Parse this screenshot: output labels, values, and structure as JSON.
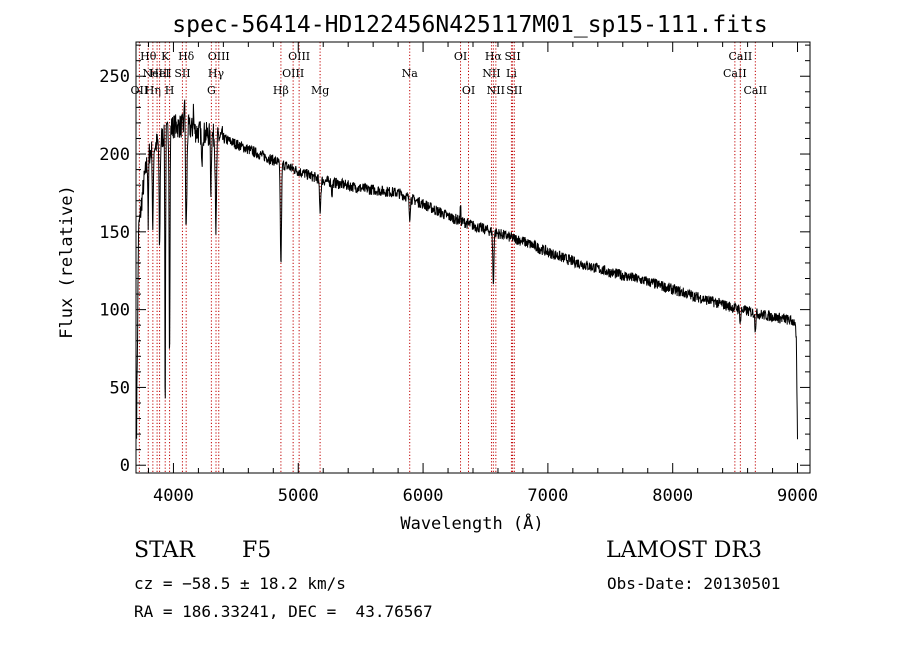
{
  "chart_data": {
    "type": "line",
    "title": "spec-56414-HD122456N425117M01_sp15-111.fits",
    "xlabel": "Wavelength (Å)",
    "ylabel": "Flux (relative)",
    "xlim": [
      3700,
      9100
    ],
    "ylim": [
      -5,
      272
    ],
    "xticks": [
      4000,
      5000,
      6000,
      7000,
      8000,
      9000
    ],
    "xtick_labels": [
      "4000",
      "5000",
      "6000",
      "7000",
      "8000",
      "9000"
    ],
    "yticks": [
      0,
      50,
      100,
      150,
      200,
      250
    ],
    "ytick_labels": [
      "0",
      "50",
      "100",
      "150",
      "200",
      "250"
    ],
    "line_color": "#000000",
    "marker_color": "#c00000",
    "continuum": [
      {
        "x": 3705,
        "y": 25
      },
      {
        "x": 3720,
        "y": 150
      },
      {
        "x": 3760,
        "y": 180
      },
      {
        "x": 3800,
        "y": 200
      },
      {
        "x": 3850,
        "y": 205
      },
      {
        "x": 3900,
        "y": 210
      },
      {
        "x": 4000,
        "y": 218
      },
      {
        "x": 4100,
        "y": 218
      },
      {
        "x": 4200,
        "y": 214
      },
      {
        "x": 4400,
        "y": 210
      },
      {
        "x": 4600,
        "y": 203
      },
      {
        "x": 4800,
        "y": 196
      },
      {
        "x": 5000,
        "y": 189
      },
      {
        "x": 5200,
        "y": 183
      },
      {
        "x": 5500,
        "y": 178
      },
      {
        "x": 5800,
        "y": 175
      },
      {
        "x": 6000,
        "y": 168
      },
      {
        "x": 6200,
        "y": 160
      },
      {
        "x": 6400,
        "y": 154
      },
      {
        "x": 6600,
        "y": 149
      },
      {
        "x": 6800,
        "y": 144
      },
      {
        "x": 7000,
        "y": 137
      },
      {
        "x": 7200,
        "y": 131
      },
      {
        "x": 7500,
        "y": 124
      },
      {
        "x": 7800,
        "y": 118
      },
      {
        "x": 8000,
        "y": 113
      },
      {
        "x": 8200,
        "y": 108
      },
      {
        "x": 8500,
        "y": 101
      },
      {
        "x": 8700,
        "y": 97
      },
      {
        "x": 8900,
        "y": 94
      },
      {
        "x": 8980,
        "y": 92
      },
      {
        "x": 8990,
        "y": 80
      },
      {
        "x": 9000,
        "y": 15
      }
    ],
    "absorption_features": [
      {
        "x": 3798,
        "depth": 45,
        "width": 4
      },
      {
        "x": 3835,
        "depth": 55,
        "width": 5
      },
      {
        "x": 3889,
        "depth": 70,
        "width": 6
      },
      {
        "x": 3934,
        "depth": 180,
        "width": 4
      },
      {
        "x": 3969,
        "depth": 145,
        "width": 5
      },
      {
        "x": 4102,
        "depth": 65,
        "width": 8
      },
      {
        "x": 4227,
        "depth": 25,
        "width": 4
      },
      {
        "x": 4300,
        "depth": 35,
        "width": 5
      },
      {
        "x": 4341,
        "depth": 60,
        "width": 7
      },
      {
        "x": 4861,
        "depth": 65,
        "width": 7
      },
      {
        "x": 5175,
        "depth": 20,
        "width": 8
      },
      {
        "x": 5270,
        "depth": 8,
        "width": 5
      },
      {
        "x": 5893,
        "depth": 12,
        "width": 6
      },
      {
        "x": 6563,
        "depth": 35,
        "width": 6
      },
      {
        "x": 8542,
        "depth": 8,
        "width": 6
      },
      {
        "x": 8662,
        "depth": 10,
        "width": 6
      }
    ],
    "emission_features": [
      {
        "x": 4090,
        "height": 28,
        "width": 4
      },
      {
        "x": 4160,
        "height": 14,
        "width": 4
      },
      {
        "x": 6300,
        "height": 10,
        "width": 4
      }
    ],
    "line_markers": [
      {
        "x": 3727,
        "label": "OII",
        "row": 2
      },
      {
        "x": 3798,
        "label": "Hθ",
        "row": 0
      },
      {
        "x": 3835,
        "label": "Hη",
        "row": 2
      },
      {
        "x": 3869,
        "label": "NeIII",
        "row": 1
      },
      {
        "x": 3889,
        "label": "HeI",
        "row": 1
      },
      {
        "x": 3934,
        "label": "K",
        "row": 0
      },
      {
        "x": 3969,
        "label": "H",
        "row": 2
      },
      {
        "x": 4072,
        "label": "SII",
        "row": 1
      },
      {
        "x": 4102,
        "label": "Hδ",
        "row": 0
      },
      {
        "x": 4304,
        "label": "G",
        "row": 2
      },
      {
        "x": 4341,
        "label": "Hγ",
        "row": 1
      },
      {
        "x": 4363,
        "label": "OIII",
        "row": 0
      },
      {
        "x": 4861,
        "label": "Hβ",
        "row": 2
      },
      {
        "x": 4959,
        "label": "OIII",
        "row": 1
      },
      {
        "x": 5007,
        "label": "OIII",
        "row": 0
      },
      {
        "x": 5175,
        "label": "Mg",
        "row": 2
      },
      {
        "x": 5893,
        "label": "Na",
        "row": 1
      },
      {
        "x": 6300,
        "label": "OI",
        "row": 0
      },
      {
        "x": 6364,
        "label": "OI",
        "row": 2
      },
      {
        "x": 6548,
        "label": "NII",
        "row": 1
      },
      {
        "x": 6563,
        "label": "Hα",
        "row": 0
      },
      {
        "x": 6583,
        "label": "NII",
        "row": 2
      },
      {
        "x": 6708,
        "label": "Li",
        "row": 1
      },
      {
        "x": 6717,
        "label": "SII",
        "row": 0
      },
      {
        "x": 6731,
        "label": "SII",
        "row": 2
      },
      {
        "x": 8498,
        "label": "CaII",
        "row": 1
      },
      {
        "x": 8542,
        "label": "CaII",
        "row": 0
      },
      {
        "x": 8662,
        "label": "CaII",
        "row": 2
      }
    ]
  },
  "info": {
    "object_class": "STAR",
    "subclass": "F5",
    "survey": "LAMOST DR3",
    "redshift": "cz = −58.5 ± 18.2 km/s",
    "obs_date": "Obs-Date: 20130501",
    "coords": "RA = 186.33241, DEC =  43.76567"
  }
}
